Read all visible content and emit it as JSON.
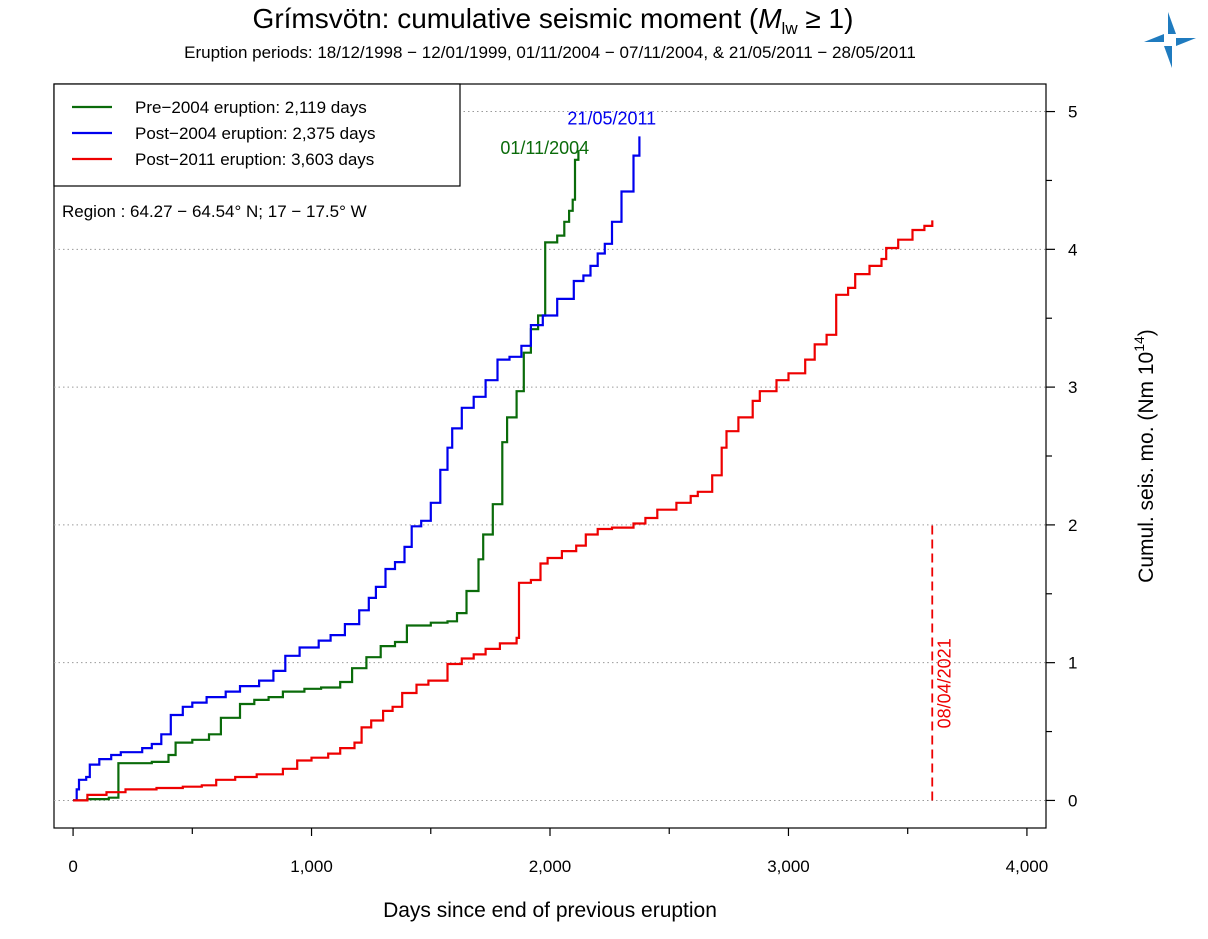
{
  "chart_data": {
    "type": "line",
    "title_prefix": "Grímsvötn: cumulative seismic moment (",
    "title_math_var": "M",
    "title_math_sub": "lw",
    "title_suffix": " ≥ 1)",
    "subtitle": "Eruption periods: 18/12/1998 − 12/01/1999, 01/11/2004 − 07/11/2004, & 21/05/2011 − 28/05/2011",
    "xlabel": "Days since end of previous eruption",
    "ylabel_prefix": "Cumul. seis. mo. (Nm 10",
    "ylabel_sup": "14",
    "ylabel_suffix": ")",
    "region_text": "Region :  64.27 − 64.54° N; 17 − 17.5° W",
    "xlim": [
      -80,
      4080
    ],
    "ylim": [
      -0.2,
      5.2
    ],
    "x_ticks": [
      0,
      1000,
      2000,
      3000,
      4000
    ],
    "x_tick_labels": [
      "0",
      "1,000",
      "2,000",
      "3,000",
      "4,000"
    ],
    "x_minor_ticks": [
      500,
      1500,
      2500,
      3500
    ],
    "y_ticks": [
      0,
      1,
      2,
      3,
      4,
      5
    ],
    "y_tick_labels": [
      "0",
      "1",
      "2",
      "3",
      "4",
      "5"
    ],
    "y_minor_ticks": [
      0.5,
      1.5,
      2.5,
      3.5,
      4.5
    ],
    "grid": "horizontal dotted at major y ticks",
    "legend_position": "top-left",
    "series": [
      {
        "name": "Pre−2004 eruption: 2,119 days",
        "color": "#0a6b0a",
        "end_label": "01/11/2004",
        "points": [
          [
            0,
            0
          ],
          [
            60,
            0.01
          ],
          [
            150,
            0.02
          ],
          [
            190,
            0.03
          ],
          [
            190,
            0.27
          ],
          [
            330,
            0.28
          ],
          [
            400,
            0.33
          ],
          [
            430,
            0.42
          ],
          [
            500,
            0.44
          ],
          [
            570,
            0.48
          ],
          [
            620,
            0.6
          ],
          [
            700,
            0.7
          ],
          [
            760,
            0.73
          ],
          [
            820,
            0.75
          ],
          [
            880,
            0.79
          ],
          [
            970,
            0.81
          ],
          [
            1040,
            0.82
          ],
          [
            1120,
            0.86
          ],
          [
            1170,
            0.96
          ],
          [
            1230,
            1.04
          ],
          [
            1290,
            1.12
          ],
          [
            1350,
            1.15
          ],
          [
            1400,
            1.18
          ],
          [
            1400,
            1.27
          ],
          [
            1500,
            1.29
          ],
          [
            1570,
            1.3
          ],
          [
            1610,
            1.36
          ],
          [
            1650,
            1.52
          ],
          [
            1700,
            1.75
          ],
          [
            1720,
            1.93
          ],
          [
            1760,
            2.15
          ],
          [
            1800,
            2.6
          ],
          [
            1820,
            2.78
          ],
          [
            1860,
            2.97
          ],
          [
            1890,
            3.25
          ],
          [
            1920,
            3.42
          ],
          [
            1950,
            3.52
          ],
          [
            1980,
            3.53
          ],
          [
            1980,
            4.05
          ],
          [
            2030,
            4.1
          ],
          [
            2060,
            4.2
          ],
          [
            2080,
            4.28
          ],
          [
            2095,
            4.36
          ],
          [
            2105,
            4.4
          ],
          [
            2105,
            4.65
          ],
          [
            2119,
            4.72
          ]
        ]
      },
      {
        "name": "Post−2004 eruption: 2,375 days",
        "color": "#0000ee",
        "end_label": "21/05/2011",
        "points": [
          [
            0,
            0
          ],
          [
            15,
            0.08
          ],
          [
            25,
            0.15
          ],
          [
            55,
            0.17
          ],
          [
            70,
            0.26
          ],
          [
            110,
            0.3
          ],
          [
            160,
            0.33
          ],
          [
            200,
            0.35
          ],
          [
            290,
            0.38
          ],
          [
            330,
            0.41
          ],
          [
            370,
            0.48
          ],
          [
            410,
            0.62
          ],
          [
            460,
            0.68
          ],
          [
            500,
            0.71
          ],
          [
            560,
            0.75
          ],
          [
            640,
            0.79
          ],
          [
            700,
            0.83
          ],
          [
            780,
            0.87
          ],
          [
            840,
            0.94
          ],
          [
            890,
            1.05
          ],
          [
            950,
            1.11
          ],
          [
            1030,
            1.16
          ],
          [
            1080,
            1.2
          ],
          [
            1140,
            1.28
          ],
          [
            1200,
            1.38
          ],
          [
            1240,
            1.47
          ],
          [
            1270,
            1.55
          ],
          [
            1310,
            1.68
          ],
          [
            1350,
            1.73
          ],
          [
            1390,
            1.84
          ],
          [
            1420,
            1.99
          ],
          [
            1460,
            2.03
          ],
          [
            1500,
            2.16
          ],
          [
            1540,
            2.4
          ],
          [
            1570,
            2.56
          ],
          [
            1590,
            2.7
          ],
          [
            1630,
            2.85
          ],
          [
            1680,
            2.93
          ],
          [
            1730,
            3.05
          ],
          [
            1780,
            3.2
          ],
          [
            1830,
            3.22
          ],
          [
            1880,
            3.3
          ],
          [
            1920,
            3.45
          ],
          [
            1970,
            3.52
          ],
          [
            2030,
            3.64
          ],
          [
            2100,
            3.77
          ],
          [
            2140,
            3.81
          ],
          [
            2170,
            3.88
          ],
          [
            2200,
            3.97
          ],
          [
            2230,
            4.04
          ],
          [
            2260,
            4.2
          ],
          [
            2300,
            4.42
          ],
          [
            2350,
            4.68
          ],
          [
            2375,
            4.82
          ]
        ]
      },
      {
        "name": "Post−2011 eruption: 3,603 days",
        "color": "#ee0000",
        "end_label": "08/04/2021",
        "points": [
          [
            0,
            0
          ],
          [
            60,
            0.04
          ],
          [
            140,
            0.06
          ],
          [
            220,
            0.08
          ],
          [
            350,
            0.09
          ],
          [
            460,
            0.1
          ],
          [
            540,
            0.11
          ],
          [
            600,
            0.15
          ],
          [
            680,
            0.17
          ],
          [
            770,
            0.19
          ],
          [
            880,
            0.23
          ],
          [
            940,
            0.29
          ],
          [
            1000,
            0.31
          ],
          [
            1070,
            0.34
          ],
          [
            1120,
            0.38
          ],
          [
            1180,
            0.42
          ],
          [
            1210,
            0.53
          ],
          [
            1250,
            0.58
          ],
          [
            1300,
            0.65
          ],
          [
            1340,
            0.68
          ],
          [
            1380,
            0.78
          ],
          [
            1440,
            0.84
          ],
          [
            1490,
            0.87
          ],
          [
            1570,
            0.99
          ],
          [
            1630,
            1.03
          ],
          [
            1680,
            1.06
          ],
          [
            1730,
            1.1
          ],
          [
            1790,
            1.14
          ],
          [
            1860,
            1.18
          ],
          [
            1870,
            1.18
          ],
          [
            1870,
            1.58
          ],
          [
            1920,
            1.6
          ],
          [
            1960,
            1.72
          ],
          [
            1990,
            1.76
          ],
          [
            2050,
            1.81
          ],
          [
            2110,
            1.85
          ],
          [
            2150,
            1.93
          ],
          [
            2200,
            1.97
          ],
          [
            2260,
            1.98
          ],
          [
            2350,
            2.01
          ],
          [
            2400,
            2.05
          ],
          [
            2450,
            2.11
          ],
          [
            2530,
            2.16
          ],
          [
            2590,
            2.21
          ],
          [
            2620,
            2.24
          ],
          [
            2680,
            2.36
          ],
          [
            2720,
            2.56
          ],
          [
            2740,
            2.68
          ],
          [
            2790,
            2.78
          ],
          [
            2850,
            2.9
          ],
          [
            2880,
            2.97
          ],
          [
            2950,
            3.05
          ],
          [
            3000,
            3.1
          ],
          [
            3070,
            3.2
          ],
          [
            3110,
            3.31
          ],
          [
            3160,
            3.38
          ],
          [
            3200,
            3.48
          ],
          [
            3200,
            3.67
          ],
          [
            3250,
            3.72
          ],
          [
            3280,
            3.82
          ],
          [
            3340,
            3.88
          ],
          [
            3390,
            3.93
          ],
          [
            3410,
            4.01
          ],
          [
            3460,
            4.07
          ],
          [
            3520,
            4.14
          ],
          [
            3570,
            4.17
          ],
          [
            3603,
            4.21
          ]
        ]
      }
    ],
    "marker_line": {
      "x": 3603,
      "y_from": 0,
      "y_to": 2.0,
      "label": "08/04/2021",
      "color": "#ee0000",
      "style": "dashed"
    },
    "logo": "imo-triangle-logo",
    "accent_colors": {
      "logo": "#1f7bbf"
    }
  }
}
